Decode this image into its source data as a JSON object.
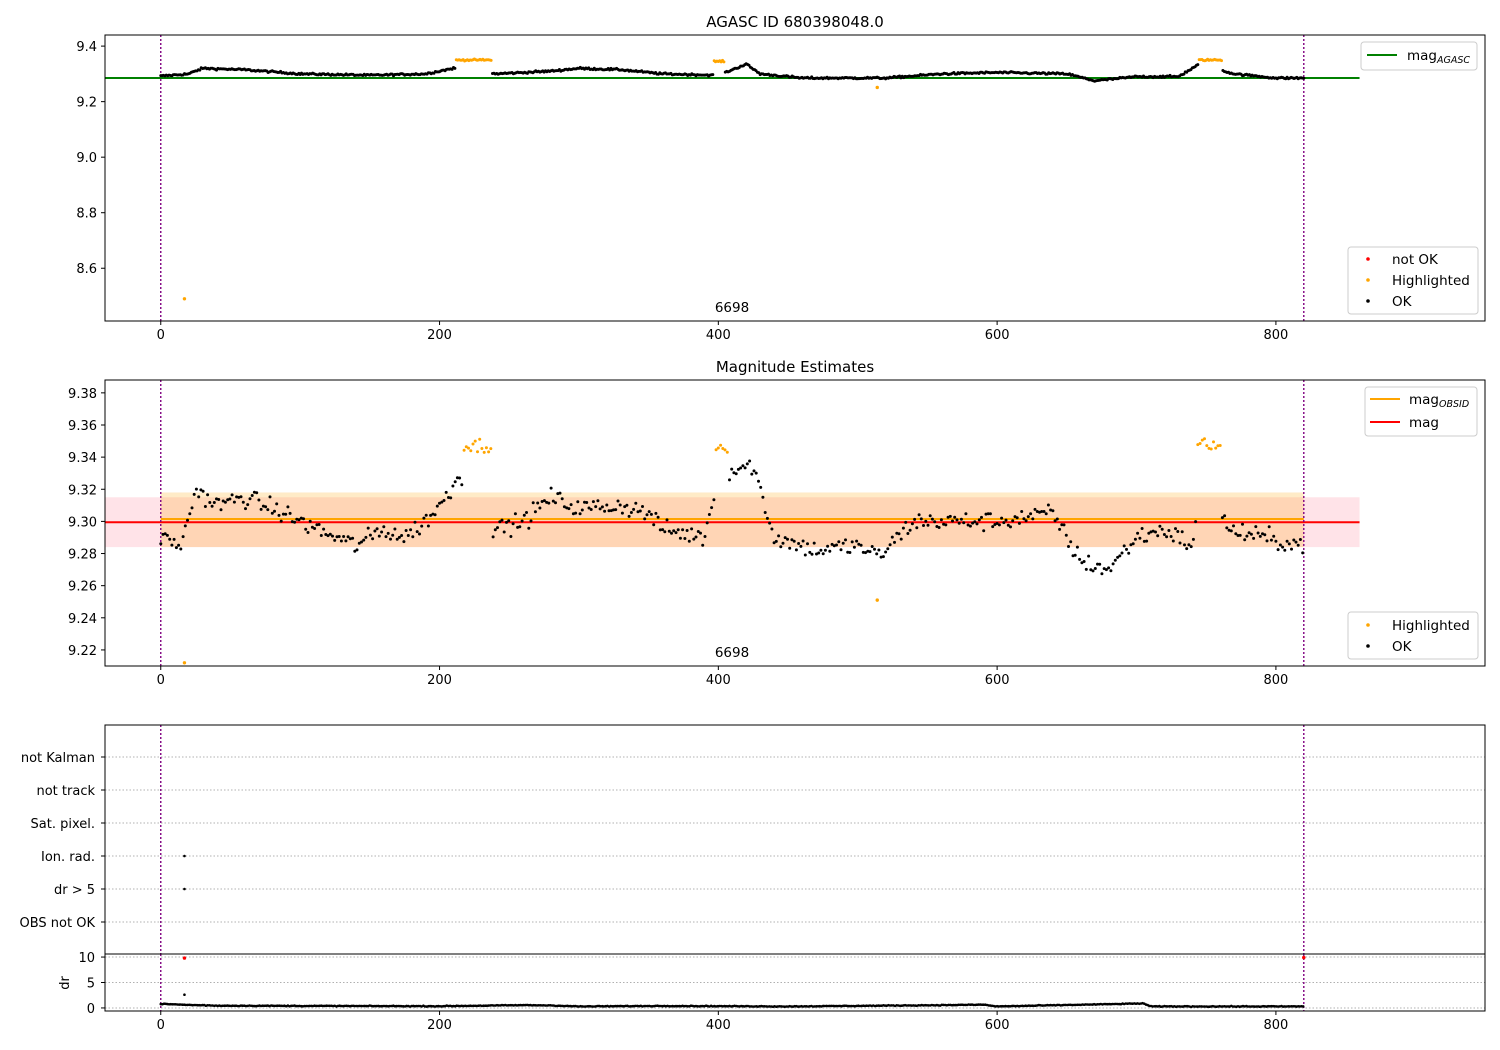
{
  "colors": {
    "ok": "#000000",
    "highlighted": "#ffa500",
    "not_ok": "#ff0000",
    "agasc_line": "#008000",
    "obsid_line": "#ffa500",
    "mag_line": "#ff0000",
    "vline": "#800080"
  },
  "chart_data": [
    {
      "type": "scatter",
      "title": "AGASC ID 680398048.0",
      "xlim": [
        -40,
        950
      ],
      "ylim": [
        8.41,
        9.44
      ],
      "x_ticks": [
        0,
        200,
        400,
        600,
        800
      ],
      "y_ticks": [
        8.6,
        8.8,
        9.0,
        9.2,
        9.4
      ],
      "y_tick_labels": [
        "8.6",
        "8.8",
        "9.0",
        "9.2",
        "9.4"
      ],
      "hlines": [
        {
          "label": "mag_AGASC",
          "y": 9.285,
          "x_range": [
            -40,
            860
          ],
          "color": "#008000"
        }
      ],
      "vlines": [
        0,
        820
      ],
      "annotation": {
        "text": "6698",
        "x": 410,
        "y": 8.43
      },
      "legend_upper": {
        "position": "upper-right",
        "entries": [
          {
            "label_main": "mag",
            "label_sub": "AGASC",
            "kind": "line",
            "color": "#008000"
          }
        ]
      },
      "legend_lower": {
        "position": "lower-right",
        "entries": [
          {
            "label": "not OK",
            "kind": "dot",
            "color": "#ff0000"
          },
          {
            "label": "Highlighted",
            "kind": "dot",
            "color": "#ffa500"
          },
          {
            "label": "OK",
            "kind": "dot",
            "color": "#000000"
          }
        ]
      },
      "series": [
        {
          "name": "OK",
          "color": "#000000",
          "baseline": [
            [
              0,
              9.292
            ],
            [
              20,
              9.3
            ],
            [
              30,
              9.32
            ],
            [
              60,
              9.315
            ],
            [
              100,
              9.3
            ],
            [
              150,
              9.295
            ],
            [
              190,
              9.3
            ],
            [
              210,
              9.32
            ],
            [
              240,
              9.3
            ],
            [
              280,
              9.31
            ],
            [
              300,
              9.32
            ],
            [
              330,
              9.315
            ],
            [
              360,
              9.3
            ],
            [
              400,
              9.295
            ],
            [
              420,
              9.335
            ],
            [
              430,
              9.3
            ],
            [
              460,
              9.285
            ],
            [
              490,
              9.285
            ],
            [
              520,
              9.285
            ],
            [
              560,
              9.3
            ],
            [
              600,
              9.305
            ],
            [
              650,
              9.3
            ],
            [
              670,
              9.275
            ],
            [
              700,
              9.29
            ],
            [
              730,
              9.29
            ],
            [
              745,
              9.335
            ],
            [
              770,
              9.3
            ],
            [
              800,
              9.285
            ],
            [
              820,
              9.285
            ]
          ]
        },
        {
          "name": "Highlighted",
          "color": "#ffa500",
          "clusters": [
            {
              "x_range": [
                212,
                237
              ],
              "y": 9.35
            },
            {
              "x_range": [
                397,
                404
              ],
              "y": 9.345
            },
            {
              "x_range": [
                745,
                761
              ],
              "y": 9.35
            }
          ],
          "outliers": [
            [
              17,
              8.49
            ],
            [
              514,
              9.251
            ]
          ]
        }
      ]
    },
    {
      "type": "scatter",
      "title": "Magnitude Estimates",
      "xlim": [
        -40,
        950
      ],
      "ylim": [
        9.21,
        9.388
      ],
      "x_ticks": [
        0,
        200,
        400,
        600,
        800
      ],
      "y_ticks": [
        9.22,
        9.24,
        9.26,
        9.28,
        9.3,
        9.32,
        9.34,
        9.36,
        9.38
      ],
      "y_tick_labels": [
        "9.22",
        "9.24",
        "9.26",
        "9.28",
        "9.30",
        "9.32",
        "9.34",
        "9.36",
        "9.38"
      ],
      "bands": [
        {
          "y_range": [
            9.284,
            9.315
          ],
          "x_range": [
            -40,
            860
          ],
          "color": "#ffc0cb",
          "opacity": 0.45
        },
        {
          "y_range": [
            9.284,
            9.318
          ],
          "x_range": [
            0,
            820
          ],
          "color": "#ffa500",
          "opacity": 0.22
        }
      ],
      "hlines": [
        {
          "label": "mag_OBSID",
          "y": 9.3015,
          "x_range": [
            0,
            820
          ],
          "color": "#ffa500"
        },
        {
          "label": "mag",
          "y": 9.2995,
          "x_range": [
            -40,
            860
          ],
          "color": "#ff0000"
        }
      ],
      "vlines": [
        0,
        820
      ],
      "annotation": {
        "text": "6698",
        "x": 410,
        "y": 9.2145
      },
      "legend_upper": {
        "position": "upper-right",
        "entries": [
          {
            "label_main": "mag",
            "label_sub": "OBSID",
            "kind": "line",
            "color": "#ffa500"
          },
          {
            "label_main": "mag",
            "label_sub": "",
            "kind": "line",
            "color": "#ff0000"
          }
        ]
      },
      "legend_lower": {
        "position": "lower-right",
        "entries": [
          {
            "label": "Highlighted",
            "kind": "dot",
            "color": "#ffa500"
          },
          {
            "label": "OK",
            "kind": "dot",
            "color": "#000000"
          }
        ]
      },
      "series": [
        {
          "name": "OK",
          "color": "#000000",
          "baseline": [
            [
              0,
              9.29
            ],
            [
              15,
              9.285
            ],
            [
              25,
              9.32
            ],
            [
              40,
              9.31
            ],
            [
              60,
              9.315
            ],
            [
              80,
              9.308
            ],
            [
              100,
              9.3
            ],
            [
              120,
              9.292
            ],
            [
              140,
              9.285
            ],
            [
              160,
              9.295
            ],
            [
              175,
              9.29
            ],
            [
              190,
              9.3
            ],
            [
              205,
              9.315
            ],
            [
              215,
              9.33
            ],
            [
              240,
              9.295
            ],
            [
              260,
              9.3
            ],
            [
              280,
              9.315
            ],
            [
              300,
              9.308
            ],
            [
              330,
              9.31
            ],
            [
              350,
              9.305
            ],
            [
              360,
              9.295
            ],
            [
              390,
              9.29
            ],
            [
              400,
              9.33
            ],
            [
              425,
              9.335
            ],
            [
              440,
              9.29
            ],
            [
              470,
              9.282
            ],
            [
              500,
              9.285
            ],
            [
              515,
              9.278
            ],
            [
              540,
              9.3
            ],
            [
              570,
              9.3
            ],
            [
              600,
              9.3
            ],
            [
              640,
              9.305
            ],
            [
              660,
              9.275
            ],
            [
              680,
              9.27
            ],
            [
              700,
              9.29
            ],
            [
              720,
              9.295
            ],
            [
              740,
              9.285
            ],
            [
              750,
              9.335
            ],
            [
              765,
              9.295
            ],
            [
              790,
              9.29
            ],
            [
              820,
              9.285
            ]
          ]
        },
        {
          "name": "Highlighted",
          "color": "#ffa500",
          "clusters": [
            {
              "x_range": [
                216,
                237
              ],
              "y": 9.347
            },
            {
              "x_range": [
                397,
                408
              ],
              "y": 9.346
            },
            {
              "x_range": [
                744,
                761
              ],
              "y": 9.348
            }
          ],
          "outliers": [
            [
              17,
              9.212
            ],
            [
              514,
              9.251
            ]
          ]
        }
      ]
    },
    {
      "type": "scatter",
      "title": "",
      "xlim": [
        -40,
        950
      ],
      "categories": [
        "OBS not OK",
        "dr > 5",
        "Ion. rad.",
        "Sat. pixel.",
        "not track",
        "not Kalman"
      ],
      "vlines": [
        0,
        820
      ],
      "flags": [
        {
          "category": "Ion. rad.",
          "x": 17,
          "color": "#000000"
        },
        {
          "category": "dr > 5",
          "x": 17,
          "color": "#000000"
        }
      ]
    },
    {
      "type": "scatter",
      "title": "",
      "xlabel": "",
      "ylabel": "dr",
      "xlim": [
        -40,
        950
      ],
      "ylim": [
        -0.6,
        10.6
      ],
      "x_ticks": [
        0,
        200,
        400,
        600,
        800
      ],
      "y_ticks": [
        0,
        5,
        10
      ],
      "y_tick_labels": [
        "0",
        "5",
        "10"
      ],
      "vlines": [
        0,
        820
      ],
      "series": [
        {
          "name": "OK",
          "color": "#000000",
          "baseline": [
            [
              0,
              0.8
            ],
            [
              10,
              0.7
            ],
            [
              20,
              0.6
            ],
            [
              40,
              0.45
            ],
            [
              100,
              0.4
            ],
            [
              200,
              0.35
            ],
            [
              260,
              0.55
            ],
            [
              280,
              0.5
            ],
            [
              300,
              0.3
            ],
            [
              360,
              0.4
            ],
            [
              450,
              0.3
            ],
            [
              560,
              0.55
            ],
            [
              590,
              0.65
            ],
            [
              600,
              0.3
            ],
            [
              690,
              0.8
            ],
            [
              705,
              0.9
            ],
            [
              710,
              0.3
            ],
            [
              820,
              0.3
            ]
          ],
          "outliers": [
            [
              17,
              2.6
            ]
          ]
        },
        {
          "name": "not OK",
          "color": "#ff0000",
          "points": [
            [
              17,
              9.8
            ],
            [
              820,
              9.9
            ]
          ]
        }
      ]
    }
  ]
}
